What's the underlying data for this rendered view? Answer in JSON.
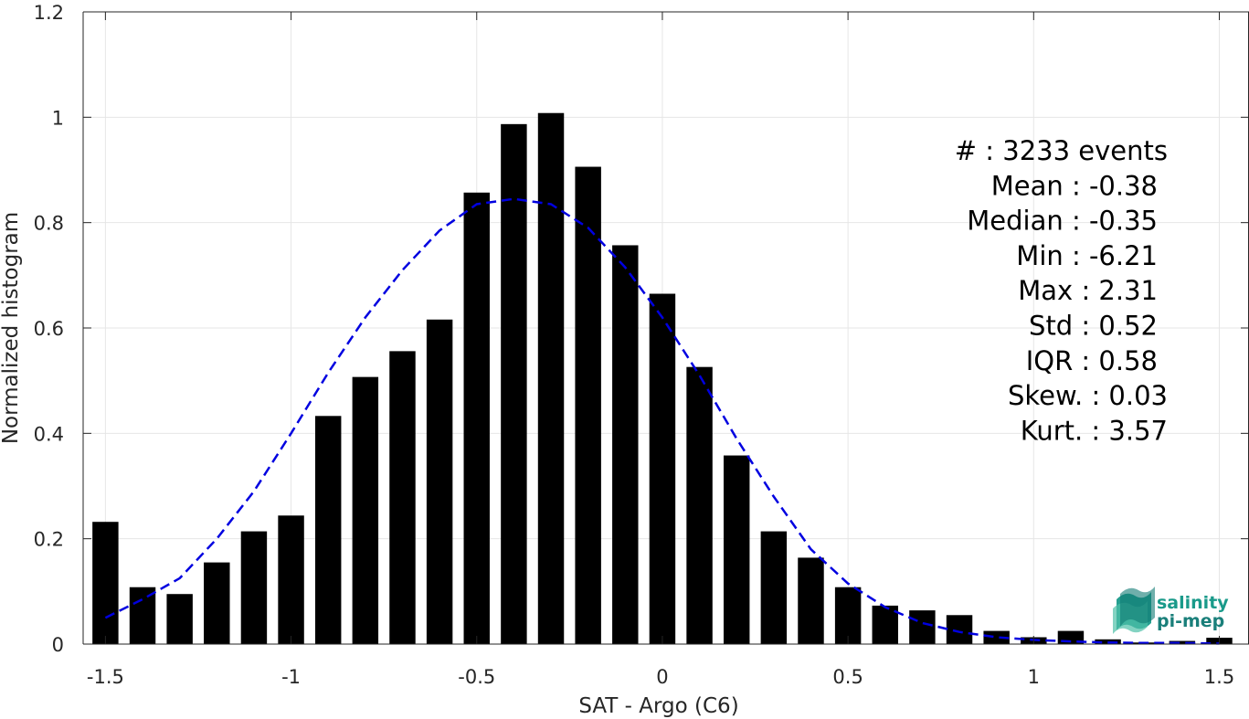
{
  "chart_data": {
    "type": "bar",
    "xlabel": "SAT - Argo (C6)",
    "ylabel": "Normalized histogram",
    "xlim": [
      -1.56,
      1.58
    ],
    "ylim": [
      0,
      1.2
    ],
    "x_ticks": [
      -1.5,
      -1,
      -0.5,
      0,
      0.5,
      1,
      1.5
    ],
    "x_tick_labels": [
      "-1.5",
      "-1",
      "-0.5",
      "0",
      "0.5",
      "1",
      "1.5"
    ],
    "y_ticks": [
      0,
      0.2,
      0.4,
      0.6,
      0.8,
      1,
      1.2
    ],
    "y_tick_labels": [
      "0",
      "0.2",
      "0.4",
      "0.6",
      "0.8",
      "1",
      "1.2"
    ],
    "grid": true,
    "bar_width": 0.07,
    "bar_color": "#000000",
    "bars": {
      "x": [
        -1.5,
        -1.4,
        -1.3,
        -1.2,
        -1.1,
        -1.0,
        -0.9,
        -0.8,
        -0.7,
        -0.6,
        -0.5,
        -0.4,
        -0.3,
        -0.2,
        -0.1,
        0.0,
        0.1,
        0.2,
        0.3,
        0.4,
        0.5,
        0.6,
        0.7,
        0.8,
        0.9,
        1.0,
        1.1,
        1.2,
        1.3,
        1.4,
        1.5
      ],
      "values": [
        0.232,
        0.108,
        0.095,
        0.155,
        0.214,
        0.244,
        0.433,
        0.507,
        0.556,
        0.616,
        0.857,
        0.987,
        1.008,
        0.906,
        0.757,
        0.665,
        0.526,
        0.358,
        0.214,
        0.164,
        0.108,
        0.073,
        0.064,
        0.055,
        0.025,
        0.013,
        0.025,
        0.009,
        0.003,
        0.006,
        0.012
      ]
    },
    "fit_curve": {
      "style": "dashed",
      "color": "#0000e0",
      "x": [
        -1.5,
        -1.4,
        -1.3,
        -1.2,
        -1.1,
        -1.0,
        -0.9,
        -0.8,
        -0.7,
        -0.6,
        -0.5,
        -0.4,
        -0.3,
        -0.2,
        -0.1,
        0.0,
        0.1,
        0.2,
        0.3,
        0.4,
        0.5,
        0.6,
        0.7,
        0.8,
        0.9,
        1.0,
        1.1,
        1.2,
        1.3,
        1.4,
        1.5
      ],
      "values": [
        0.05,
        0.085,
        0.125,
        0.2,
        0.29,
        0.4,
        0.515,
        0.62,
        0.71,
        0.785,
        0.835,
        0.845,
        0.835,
        0.79,
        0.715,
        0.62,
        0.51,
        0.39,
        0.28,
        0.18,
        0.115,
        0.07,
        0.04,
        0.023,
        0.013,
        0.008,
        0.005,
        0.003,
        0.002,
        0.002,
        0.001
      ]
    },
    "stats": [
      {
        "label": "#  : 3233 events"
      },
      {
        "label": "Mean : -0.38"
      },
      {
        "label": "Median : -0.35"
      },
      {
        "label": "Min : -6.21"
      },
      {
        "label": "Max : 2.31"
      },
      {
        "label": "Std : 0.52"
      },
      {
        "label": "IQR : 0.58"
      },
      {
        "label": "Skew. : 0.03"
      },
      {
        "label": "Kurt. : 3.57"
      }
    ]
  },
  "logo": {
    "line1": "salinity",
    "line2": "pi-mep",
    "color": "#1a9a8a"
  }
}
